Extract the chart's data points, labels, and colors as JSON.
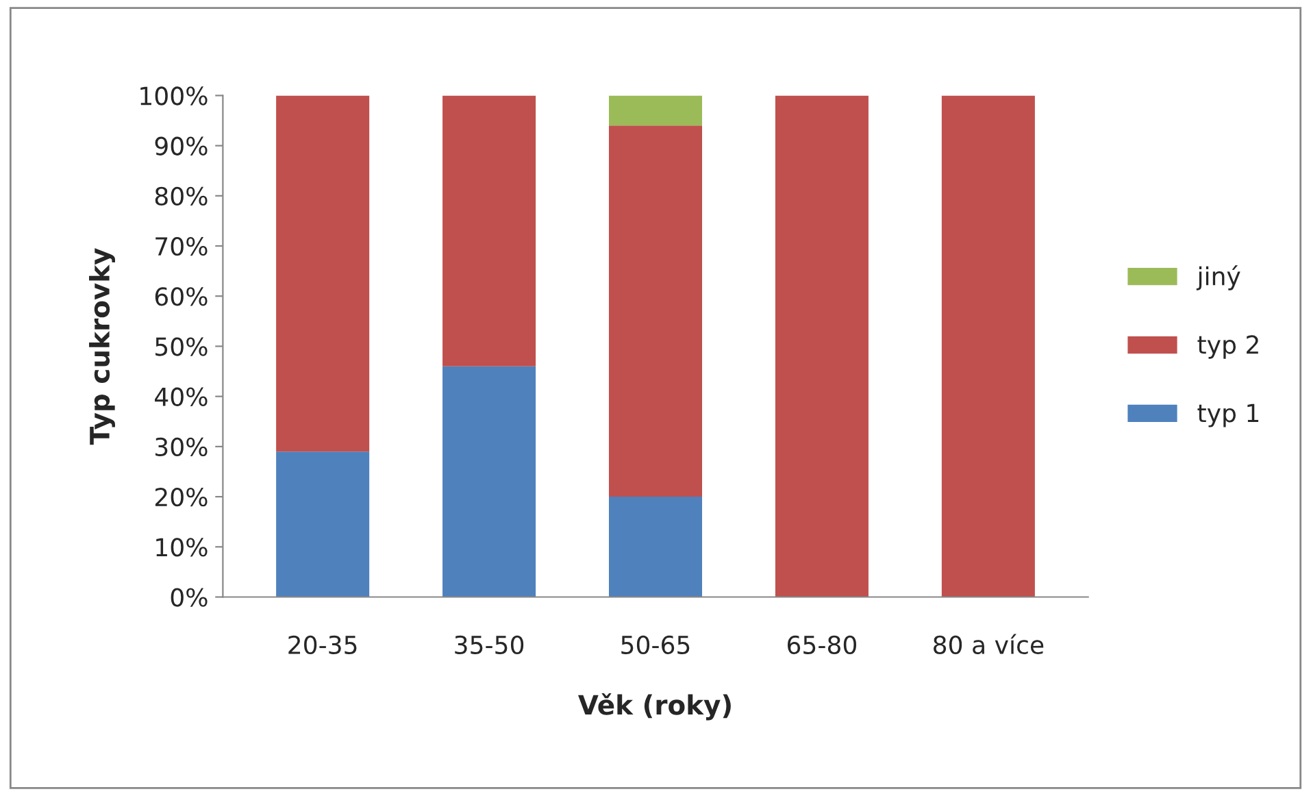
{
  "chart_data": {
    "type": "bar",
    "stacked": true,
    "xlabel": "Věk (roky)",
    "ylabel": "Typ cukrovky",
    "categories": [
      "20-35",
      "35-50",
      "50-65",
      "65-80",
      "80 a více"
    ],
    "series": [
      {
        "name": "typ 1",
        "color": "#4f81bd",
        "values": [
          29,
          46,
          20,
          0,
          0
        ]
      },
      {
        "name": "typ 2",
        "color": "#c0504d",
        "values": [
          71,
          54,
          74,
          100,
          100
        ]
      },
      {
        "name": "jiný",
        "color": "#9bbb59",
        "values": [
          0,
          0,
          6,
          0,
          0
        ]
      }
    ],
    "ylim": [
      0,
      100
    ],
    "yticks": [
      {
        "value": 0,
        "label": "0%"
      },
      {
        "value": 10,
        "label": "10%"
      },
      {
        "value": 20,
        "label": "20%"
      },
      {
        "value": 30,
        "label": "30%"
      },
      {
        "value": 40,
        "label": "40%"
      },
      {
        "value": 50,
        "label": "50%"
      },
      {
        "value": 60,
        "label": "60%"
      },
      {
        "value": 70,
        "label": "70%"
      },
      {
        "value": 80,
        "label": "80%"
      },
      {
        "value": 90,
        "label": "90%"
      },
      {
        "value": 100,
        "label": "100%"
      }
    ],
    "grid": false,
    "legend": "right"
  }
}
